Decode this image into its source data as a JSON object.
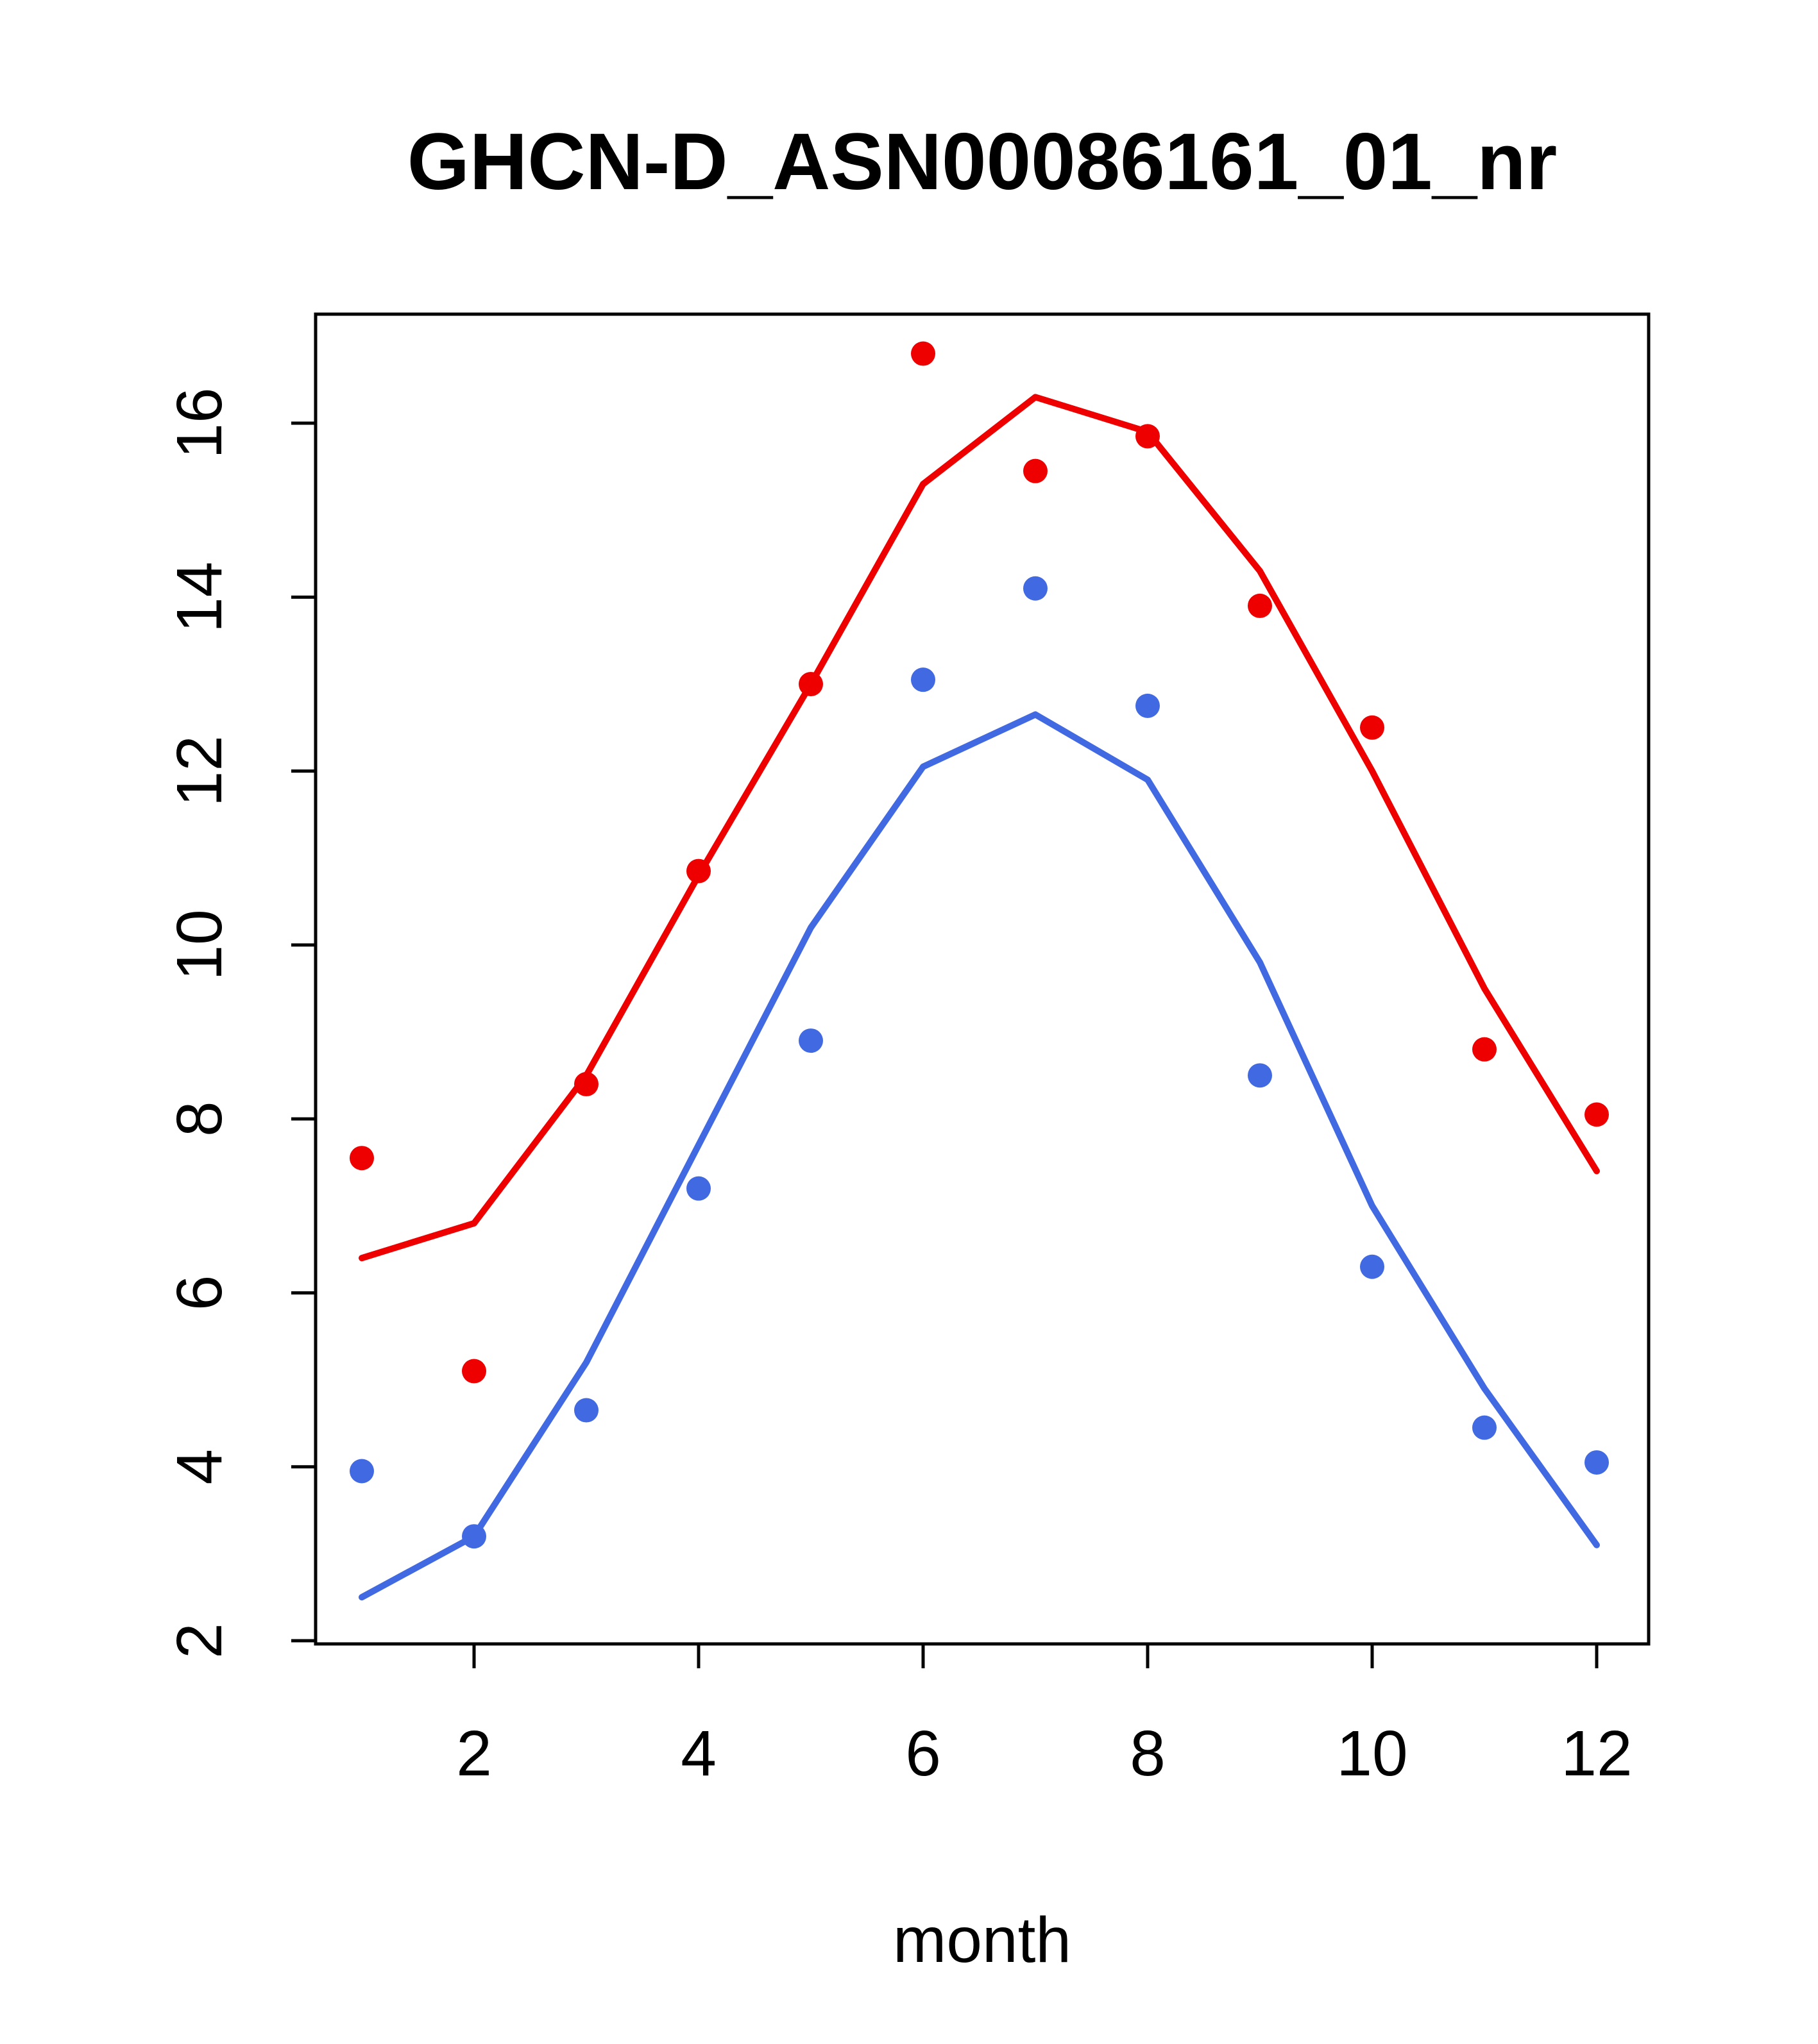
{
  "page": {
    "background": "#ffffff",
    "text_color": "#000000"
  },
  "chart_data": {
    "type": "scatter",
    "title": "GHCN-D_ASN00086161_01_nr",
    "xlabel": "month",
    "ylabel": "",
    "xlim": [
      0.56,
      12.45
    ],
    "ylim": [
      2,
      17.25
    ],
    "x_ticks": [
      2,
      4,
      6,
      8,
      10,
      12
    ],
    "y_ticks": [
      2,
      4,
      6,
      8,
      10,
      12,
      14,
      16
    ],
    "grid": false,
    "legend": null,
    "x": [
      1,
      2,
      3,
      4,
      5,
      6,
      7,
      8,
      9,
      10,
      11,
      12
    ],
    "series": [
      {
        "name": "red-line",
        "style": "line",
        "color": "#ee0000",
        "values": [
          6.4,
          6.8,
          8.5,
          10.8,
          13.0,
          15.3,
          16.3,
          15.9,
          14.3,
          12.0,
          9.5,
          7.4
        ]
      },
      {
        "name": "blue-line",
        "style": "line",
        "color": "#4169e1",
        "values": [
          2.5,
          3.2,
          5.2,
          7.7,
          10.2,
          12.05,
          12.65,
          11.9,
          9.8,
          7.0,
          4.9,
          3.1
        ]
      },
      {
        "name": "red-points",
        "style": "points",
        "color": "#ee0000",
        "values": [
          7.55,
          5.1,
          8.4,
          10.85,
          13.0,
          16.8,
          15.45,
          15.85,
          13.9,
          12.5,
          8.8,
          8.05
        ]
      },
      {
        "name": "blue-points",
        "style": "points",
        "color": "#4169e1",
        "values": [
          3.95,
          3.2,
          4.65,
          7.2,
          8.9,
          13.05,
          14.1,
          12.75,
          8.5,
          6.3,
          4.45,
          4.05
        ]
      }
    ]
  }
}
